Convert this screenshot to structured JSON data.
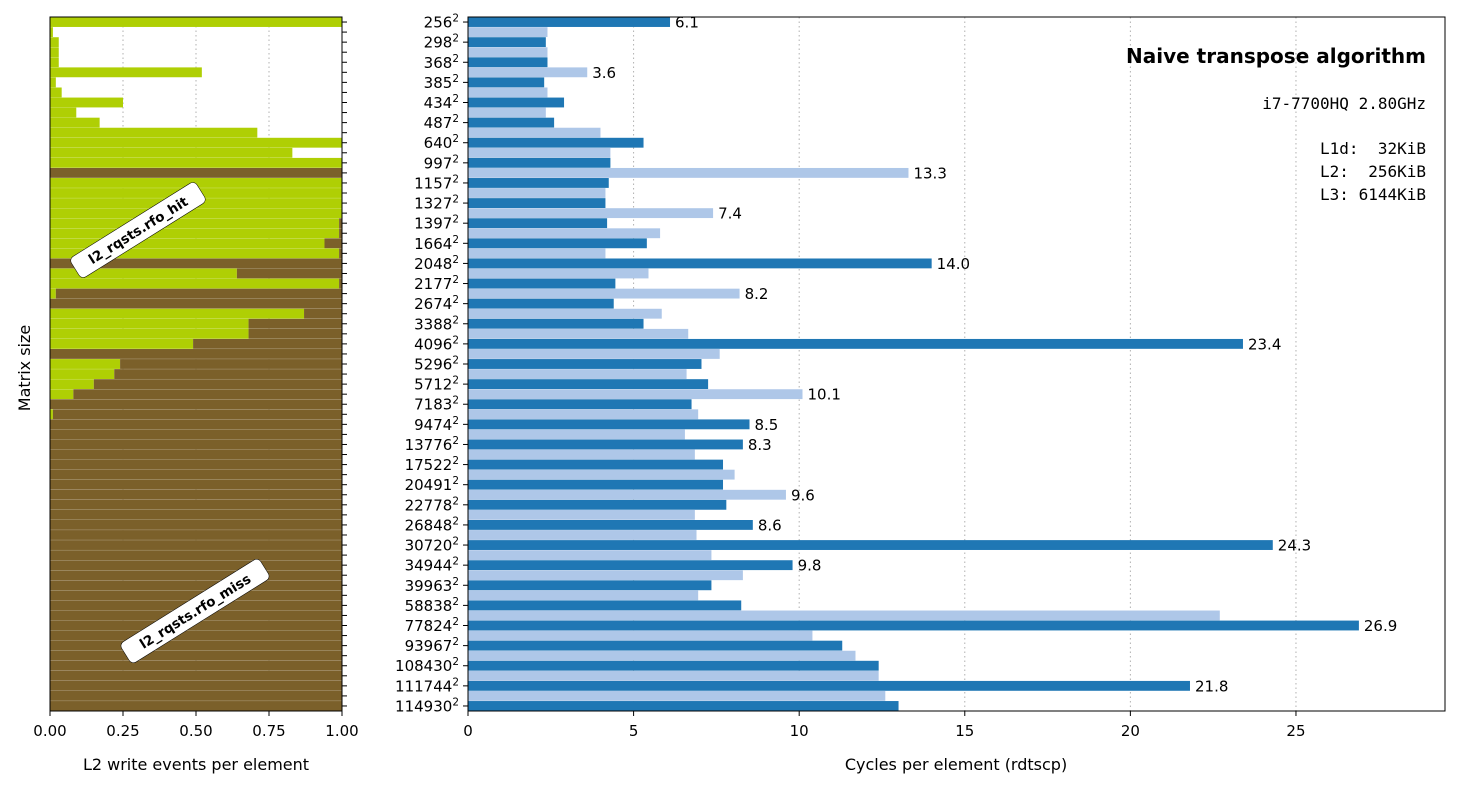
{
  "colors": {
    "hit": "#afcf04",
    "miss": "#7b602a",
    "dark_bar": "#1f77b4",
    "light_bar": "#aec7e8"
  },
  "chart_data": [
    {
      "type": "bar",
      "orientation": "horizontal",
      "stacked": true,
      "xlabel": "L2 write events per element",
      "ylabel": "Matrix size",
      "xlim": [
        0,
        1
      ],
      "xticks": [
        "0.00",
        "0.25",
        "0.50",
        "0.75",
        "1.00"
      ],
      "grid": "x-dotted",
      "annotations": [
        "l2_rqsts.rfo_hit",
        "l2_rqsts.rfo_miss"
      ],
      "series": [
        {
          "name": "l2_rqsts.rfo_hit",
          "values": [
            1.0,
            0.01,
            0.03,
            0.03,
            0.03,
            0.52,
            0.02,
            0.04,
            0.25,
            0.09,
            0.17,
            0.71,
            1.0,
            0.83,
            1.0,
            0.0,
            1.0,
            1.0,
            1.0,
            1.0,
            0.99,
            0.99,
            0.94,
            0.99,
            0.0,
            0.64,
            0.99,
            0.02,
            0.0,
            0.87,
            0.68,
            0.68,
            0.49,
            0.0,
            0.24,
            0.22,
            0.15,
            0.08,
            0.0,
            0.01,
            0.0,
            0.0,
            0.0,
            0.0,
            0.0,
            0.0,
            0.0,
            0.0,
            0.0,
            0.0,
            0.0,
            0.0,
            0.0,
            0.0,
            0.0,
            0.0,
            0.0,
            0.0,
            0.0,
            0.0,
            0.0,
            0.0,
            0.0,
            0.0,
            0.0,
            0.0,
            0.0,
            0.0,
            0.0
          ]
        },
        {
          "name": "l2_rqsts.rfo_miss",
          "values": [
            0.0,
            0.0,
            0.0,
            0.0,
            0.0,
            0.0,
            0.0,
            0.0,
            0.0,
            0.0,
            0.0,
            0.0,
            0.0,
            0.0,
            0.0,
            1.0,
            0.0,
            0.0,
            0.0,
            0.0,
            0.01,
            0.01,
            0.06,
            0.01,
            1.0,
            0.36,
            0.01,
            0.98,
            1.0,
            0.13,
            0.32,
            0.32,
            0.51,
            1.0,
            0.76,
            0.78,
            0.85,
            0.92,
            1.0,
            0.99,
            1.0,
            1.0,
            1.0,
            1.0,
            1.0,
            1.0,
            1.0,
            1.0,
            1.0,
            1.0,
            1.0,
            1.0,
            1.0,
            1.0,
            1.0,
            1.0,
            1.0,
            1.0,
            1.0,
            1.0,
            1.0,
            1.0,
            1.0,
            1.0,
            1.0,
            1.0,
            1.0,
            1.0,
            1.0
          ]
        }
      ]
    },
    {
      "type": "bar",
      "orientation": "horizontal",
      "title": "Naive transpose algorithm",
      "info_lines": [
        "i7-7700HQ 2.80GHz",
        "L1d:  32KiB",
        "L2:  256KiB",
        "L3: 6144KiB"
      ],
      "xlabel": "Cycles per element (rdtscp)",
      "xlim": [
        0,
        29.5
      ],
      "xticks": [
        "0",
        "5",
        "10",
        "15",
        "20",
        "25"
      ],
      "grid": "x-dotted",
      "categories": [
        {
          "base": "256",
          "exp": "2"
        },
        {
          "base": "298",
          "exp": "2"
        },
        {
          "base": "368",
          "exp": "2"
        },
        {
          "base": "385",
          "exp": "2"
        },
        {
          "base": "434",
          "exp": "2"
        },
        {
          "base": "487",
          "exp": "2"
        },
        {
          "base": "640",
          "exp": "2"
        },
        {
          "base": "997",
          "exp": "2"
        },
        {
          "base": "1157",
          "exp": "2"
        },
        {
          "base": "1327",
          "exp": "2"
        },
        {
          "base": "1397",
          "exp": "2"
        },
        {
          "base": "1664",
          "exp": "2"
        },
        {
          "base": "2048",
          "exp": "2"
        },
        {
          "base": "2177",
          "exp": "2"
        },
        {
          "base": "2674",
          "exp": "2"
        },
        {
          "base": "3388",
          "exp": "2"
        },
        {
          "base": "4096",
          "exp": "2"
        },
        {
          "base": "5296",
          "exp": "2"
        },
        {
          "base": "5712",
          "exp": "2"
        },
        {
          "base": "7183",
          "exp": "2"
        },
        {
          "base": "9474",
          "exp": "2"
        },
        {
          "base": "13776",
          "exp": "2"
        },
        {
          "base": "17522",
          "exp": "2"
        },
        {
          "base": "20491",
          "exp": "2"
        },
        {
          "base": "22778",
          "exp": "2"
        },
        {
          "base": "26848",
          "exp": "2"
        },
        {
          "base": "30720",
          "exp": "2"
        },
        {
          "base": "34944",
          "exp": "2"
        },
        {
          "base": "39963",
          "exp": "2"
        },
        {
          "base": "58838",
          "exp": "2"
        },
        {
          "base": "77824",
          "exp": "2"
        },
        {
          "base": "93967",
          "exp": "2"
        },
        {
          "base": "108430",
          "exp": "2"
        },
        {
          "base": "111744",
          "exp": "2"
        },
        {
          "base": "114930",
          "exp": "2"
        }
      ],
      "bars": [
        {
          "value": 6.1,
          "label": "6.1",
          "shade": "dark"
        },
        {
          "value": 2.4,
          "label": "",
          "shade": "light"
        },
        {
          "value": 2.35,
          "label": "",
          "shade": "dark"
        },
        {
          "value": 2.4,
          "label": "",
          "shade": "light"
        },
        {
          "value": 2.4,
          "label": "",
          "shade": "dark"
        },
        {
          "value": 3.6,
          "label": "3.6",
          "shade": "light"
        },
        {
          "value": 2.3,
          "label": "",
          "shade": "dark"
        },
        {
          "value": 2.4,
          "label": "",
          "shade": "light"
        },
        {
          "value": 2.9,
          "label": "",
          "shade": "dark"
        },
        {
          "value": 2.35,
          "label": "",
          "shade": "light"
        },
        {
          "value": 2.6,
          "label": "",
          "shade": "dark"
        },
        {
          "value": 4.0,
          "label": "",
          "shade": "light"
        },
        {
          "value": 5.3,
          "label": "",
          "shade": "dark"
        },
        {
          "value": 4.3,
          "label": "",
          "shade": "light"
        },
        {
          "value": 4.3,
          "label": "",
          "shade": "dark"
        },
        {
          "value": 13.3,
          "label": "13.3",
          "shade": "light"
        },
        {
          "value": 4.25,
          "label": "",
          "shade": "dark"
        },
        {
          "value": 4.15,
          "label": "",
          "shade": "light"
        },
        {
          "value": 4.15,
          "label": "",
          "shade": "dark"
        },
        {
          "value": 7.4,
          "label": "7.4",
          "shade": "light"
        },
        {
          "value": 4.2,
          "label": "",
          "shade": "dark"
        },
        {
          "value": 5.8,
          "label": "",
          "shade": "light"
        },
        {
          "value": 5.4,
          "label": "",
          "shade": "dark"
        },
        {
          "value": 4.15,
          "label": "",
          "shade": "light"
        },
        {
          "value": 14.0,
          "label": "14.0",
          "shade": "dark"
        },
        {
          "value": 5.45,
          "label": "",
          "shade": "light"
        },
        {
          "value": 4.45,
          "label": "",
          "shade": "dark"
        },
        {
          "value": 8.2,
          "label": "8.2",
          "shade": "light"
        },
        {
          "value": 4.4,
          "label": "",
          "shade": "dark"
        },
        {
          "value": 5.85,
          "label": "",
          "shade": "light"
        },
        {
          "value": 5.3,
          "label": "",
          "shade": "dark"
        },
        {
          "value": 6.65,
          "label": "",
          "shade": "light"
        },
        {
          "value": 23.4,
          "label": "23.4",
          "shade": "dark"
        },
        {
          "value": 7.6,
          "label": "",
          "shade": "light"
        },
        {
          "value": 7.05,
          "label": "",
          "shade": "dark"
        },
        {
          "value": 6.6,
          "label": "",
          "shade": "light"
        },
        {
          "value": 7.25,
          "label": "",
          "shade": "dark"
        },
        {
          "value": 10.1,
          "label": "10.1",
          "shade": "light"
        },
        {
          "value": 6.75,
          "label": "",
          "shade": "dark"
        },
        {
          "value": 6.95,
          "label": "",
          "shade": "light"
        },
        {
          "value": 8.5,
          "label": "8.5",
          "shade": "dark"
        },
        {
          "value": 6.55,
          "label": "",
          "shade": "light"
        },
        {
          "value": 8.3,
          "label": "8.3",
          "shade": "dark"
        },
        {
          "value": 6.85,
          "label": "",
          "shade": "light"
        },
        {
          "value": 7.7,
          "label": "",
          "shade": "dark"
        },
        {
          "value": 8.05,
          "label": "",
          "shade": "light"
        },
        {
          "value": 7.7,
          "label": "",
          "shade": "dark"
        },
        {
          "value": 9.6,
          "label": "9.6",
          "shade": "light"
        },
        {
          "value": 7.8,
          "label": "",
          "shade": "dark"
        },
        {
          "value": 6.85,
          "label": "",
          "shade": "light"
        },
        {
          "value": 8.6,
          "label": "8.6",
          "shade": "dark"
        },
        {
          "value": 6.9,
          "label": "",
          "shade": "light"
        },
        {
          "value": 24.3,
          "label": "24.3",
          "shade": "dark"
        },
        {
          "value": 7.35,
          "label": "",
          "shade": "light"
        },
        {
          "value": 9.8,
          "label": "9.8",
          "shade": "dark"
        },
        {
          "value": 8.3,
          "label": "",
          "shade": "light"
        },
        {
          "value": 7.35,
          "label": "",
          "shade": "dark"
        },
        {
          "value": 6.95,
          "label": "",
          "shade": "light"
        },
        {
          "value": 8.25,
          "label": "",
          "shade": "dark"
        },
        {
          "value": 22.7,
          "label": "",
          "shade": "light"
        },
        {
          "value": 26.9,
          "label": "26.9",
          "shade": "dark"
        },
        {
          "value": 10.4,
          "label": "",
          "shade": "light"
        },
        {
          "value": 11.3,
          "label": "",
          "shade": "dark"
        },
        {
          "value": 11.7,
          "label": "",
          "shade": "light"
        },
        {
          "value": 12.4,
          "label": "",
          "shade": "dark"
        },
        {
          "value": 12.4,
          "label": "",
          "shade": "light"
        },
        {
          "value": 21.8,
          "label": "21.8",
          "shade": "dark"
        },
        {
          "value": 12.6,
          "label": "",
          "shade": "light"
        },
        {
          "value": 13.0,
          "label": "",
          "shade": "dark"
        }
      ]
    }
  ]
}
